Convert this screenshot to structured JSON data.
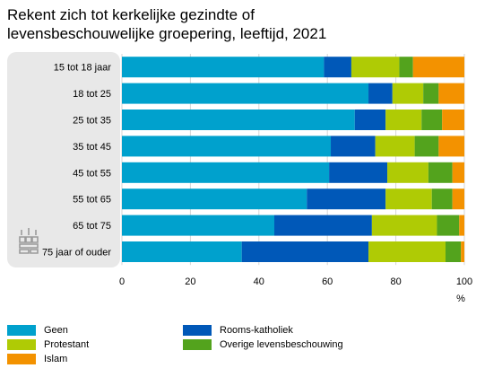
{
  "title_lines": [
    "Rekent zich tot kerkelijke gezindte of",
    "levensbeschouwelijke groepering, leeftijd, 2021"
  ],
  "colors": {
    "panel": "#e8e8e8",
    "grid": "#ffffff",
    "logo": "#9a9a9a"
  },
  "logo": {
    "name": "cbs-logo-icon"
  },
  "chart_data": {
    "type": "bar",
    "orientation": "horizontal",
    "stacked": true,
    "title": "Rekent zich tot kerkelijke gezindte of levensbeschouwelijke groepering, leeftijd, 2021",
    "xlabel": "%",
    "xlim": [
      0,
      100
    ],
    "xticks": [
      0,
      20,
      40,
      60,
      80,
      100
    ],
    "grid": true,
    "legend_position": "bottom",
    "categories": [
      "15 tot 18 jaar",
      "18 tot 25",
      "25 tot 35",
      "35 tot 45",
      "45 tot 55",
      "55 tot 65",
      "65 tot 75",
      "75 jaar of ouder"
    ],
    "series": [
      {
        "name": "Geen",
        "color": "#00a1cd",
        "values": [
          59,
          72,
          68,
          61,
          60.5,
          54,
          44.5,
          35
        ]
      },
      {
        "name": "Rooms-katholiek",
        "color": "#0058b8",
        "values": [
          8,
          7,
          9,
          13,
          17,
          23,
          28.5,
          37
        ]
      },
      {
        "name": "Protestant",
        "color": "#afcb05",
        "values": [
          14,
          9,
          10.5,
          11.5,
          12,
          13.5,
          19,
          22.5
        ]
      },
      {
        "name": "Overige levensbeschouwing",
        "color": "#53a31d",
        "values": [
          4,
          4.5,
          6,
          7,
          7,
          6,
          6.5,
          4.5
        ]
      },
      {
        "name": "Islam",
        "color": "#f39200",
        "values": [
          15,
          7.5,
          6.5,
          7.5,
          3.5,
          3.5,
          1.5,
          1
        ]
      }
    ]
  }
}
